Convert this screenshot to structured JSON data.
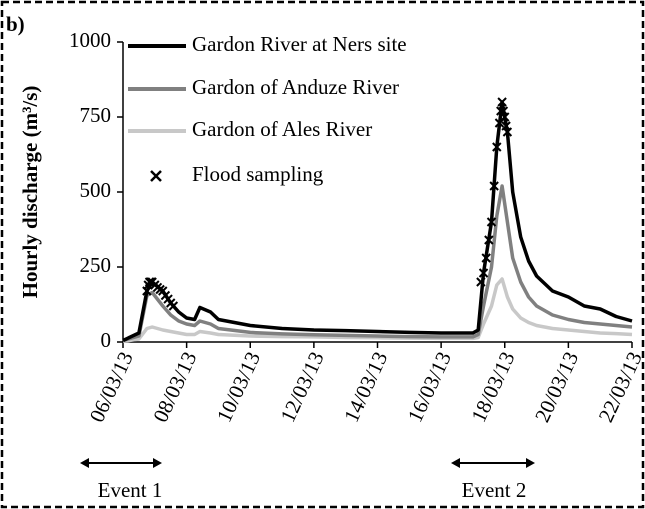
{
  "chart_data": {
    "type": "line",
    "panel_label": "b)",
    "y_label": "Hourly discharge (m³/s)",
    "ylim": [
      0,
      1000
    ],
    "yticks": [
      0,
      250,
      500,
      750,
      1000
    ],
    "xlim": [
      "2013-03-06",
      "2013-03-22"
    ],
    "xticks": [
      {
        "value": "2013-03-06",
        "label": "06/03/13"
      },
      {
        "value": "2013-03-08",
        "label": "08/03/13"
      },
      {
        "value": "2013-03-10",
        "label": "10/03/13"
      },
      {
        "value": "2013-03-12",
        "label": "12/03/13"
      },
      {
        "value": "2013-03-14",
        "label": "14/03/13"
      },
      {
        "value": "2013-03-16",
        "label": "16/03/13"
      },
      {
        "value": "2013-03-18",
        "label": "18/03/13"
      },
      {
        "value": "2013-03-20",
        "label": "20/03/13"
      },
      {
        "value": "2013-03-22",
        "label": "22/03/13"
      }
    ],
    "x": [
      "2013-03-06 00:00",
      "2013-03-06 12:00",
      "2013-03-06 18:00",
      "2013-03-06 22:00",
      "2013-03-07 06:00",
      "2013-03-07 12:00",
      "2013-03-07 18:00",
      "2013-03-08 00:00",
      "2013-03-08 06:00",
      "2013-03-08 10:00",
      "2013-03-08 18:00",
      "2013-03-09 00:00",
      "2013-03-10 00:00",
      "2013-03-11 00:00",
      "2013-03-12 00:00",
      "2013-03-13 00:00",
      "2013-03-14 00:00",
      "2013-03-15 00:00",
      "2013-03-16 00:00",
      "2013-03-17 00:00",
      "2013-03-17 04:00",
      "2013-03-17 08:00",
      "2013-03-17 14:00",
      "2013-03-17 18:00",
      "2013-03-17 22:00",
      "2013-03-18 02:00",
      "2013-03-18 06:00",
      "2013-03-18 12:00",
      "2013-03-18 18:00",
      "2013-03-19 00:00",
      "2013-03-19 12:00",
      "2013-03-20 00:00",
      "2013-03-20 12:00",
      "2013-03-21 00:00",
      "2013-03-21 12:00",
      "2013-03-22 00:00"
    ],
    "series": [
      {
        "name": "Gardon River at Ners site",
        "color": "#000000",
        "values": [
          5,
          30,
          170,
          200,
          170,
          130,
          100,
          80,
          75,
          115,
          100,
          75,
          55,
          45,
          40,
          38,
          35,
          32,
          30,
          30,
          40,
          230,
          400,
          650,
          800,
          700,
          500,
          350,
          270,
          220,
          170,
          150,
          120,
          110,
          85,
          70
        ]
      },
      {
        "name": "Gardon of Anduze River",
        "color": "#808080",
        "values": [
          5,
          20,
          155,
          165,
          120,
          90,
          70,
          60,
          55,
          70,
          60,
          45,
          32,
          27,
          24,
          22,
          20,
          18,
          17,
          17,
          25,
          120,
          250,
          420,
          520,
          400,
          280,
          200,
          150,
          120,
          90,
          75,
          65,
          60,
          55,
          50
        ]
      },
      {
        "name": "Gardon of Ales River",
        "color": "#c8c8c8",
        "values": [
          2,
          10,
          45,
          50,
          40,
          35,
          30,
          25,
          25,
          35,
          30,
          25,
          20,
          18,
          17,
          15,
          14,
          13,
          12,
          12,
          15,
          60,
          120,
          190,
          210,
          150,
          110,
          80,
          65,
          55,
          45,
          40,
          35,
          30,
          28,
          25
        ]
      },
      {
        "name": "Flood sampling",
        "type": "scatter",
        "color": "#000000",
        "x": [
          "2013-03-06 18:00",
          "2013-03-06 19:00",
          "2013-03-06 20:00",
          "2013-03-06 21:00",
          "2013-03-06 22:00",
          "2013-03-07 00:00",
          "2013-03-07 02:00",
          "2013-03-07 04:00",
          "2013-03-07 06:00",
          "2013-03-07 08:00",
          "2013-03-07 10:00",
          "2013-03-07 12:00",
          "2013-03-07 14:00",
          "2013-03-17 06:00",
          "2013-03-17 08:00",
          "2013-03-17 10:00",
          "2013-03-17 12:00",
          "2013-03-17 14:00",
          "2013-03-17 16:00",
          "2013-03-17 18:00",
          "2013-03-17 20:00",
          "2013-03-17 21:00",
          "2013-03-17 22:00",
          "2013-03-17 23:00",
          "2013-03-18 00:00",
          "2013-03-18 01:00",
          "2013-03-18 02:00"
        ],
        "values": [
          170,
          190,
          200,
          200,
          200,
          190,
          182,
          175,
          170,
          155,
          143,
          130,
          120,
          200,
          230,
          280,
          340,
          400,
          520,
          650,
          730,
          770,
          800,
          770,
          750,
          720,
          700
        ]
      }
    ],
    "annotations": [
      "Event 1",
      "Event 2"
    ]
  }
}
